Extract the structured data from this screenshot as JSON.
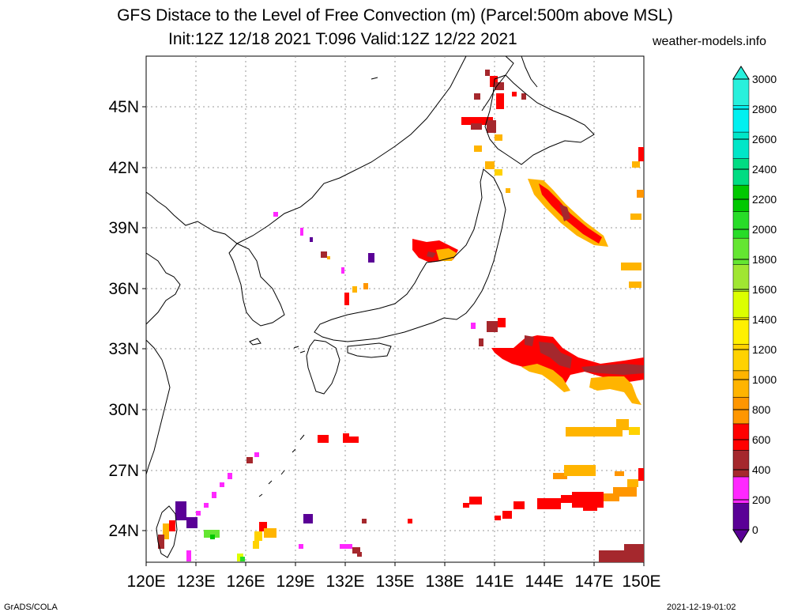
{
  "header": {
    "title_line1": "GFS Distace to the Level of Free Convection (m) (Parcel:500m above MSL)",
    "title_line2": "Init:12Z 12/18 2021 T:096 Valid:12Z 12/22 2021",
    "site": "weather-models.info"
  },
  "footer": {
    "left": "GrADS/COLA",
    "right": "2021-12-19-01:02"
  },
  "map": {
    "lon_range": [
      120,
      150
    ],
    "lat_range": [
      22.5,
      47.5
    ],
    "lat_ticks": [
      "45N",
      "42N",
      "39N",
      "36N",
      "33N",
      "30N",
      "27N",
      "24N"
    ],
    "lon_ticks": [
      "120E",
      "123E",
      "126E",
      "129E",
      "132E",
      "135E",
      "138E",
      "141E",
      "144E",
      "147E",
      "150E"
    ],
    "grid": true
  },
  "colorbar": {
    "labels": [
      "0",
      "200",
      "400",
      "600",
      "800",
      "1000",
      "1200",
      "1400",
      "1600",
      "1800",
      "2000",
      "2200",
      "2400",
      "2600",
      "2800",
      "3000"
    ],
    "colors": [
      "#5a0096",
      "#ff28ff",
      "#a5282d",
      "#ff0000",
      "#ff9600",
      "#ffb400",
      "#ffd200",
      "#fff000",
      "#dcff00",
      "#a0e632",
      "#64e632",
      "#28dc28",
      "#00c800",
      "#00dc82",
      "#00e6c8",
      "#00f0f0",
      "#28f0dc"
    ]
  }
}
